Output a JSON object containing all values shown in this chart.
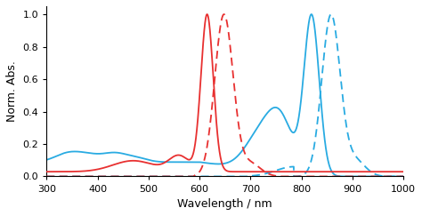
{
  "xlim": [
    300,
    1000
  ],
  "ylim": [
    0,
    1.05
  ],
  "xlabel": "Wavelength / nm",
  "ylabel": "Norm. Abs.",
  "xticks": [
    300,
    400,
    500,
    600,
    700,
    800,
    900,
    1000
  ],
  "yticks": [
    0,
    0.2,
    0.4,
    0.6,
    0.8,
    1
  ],
  "red_color": "#e83030",
  "cyan_color": "#29abe2",
  "background": "#ffffff"
}
